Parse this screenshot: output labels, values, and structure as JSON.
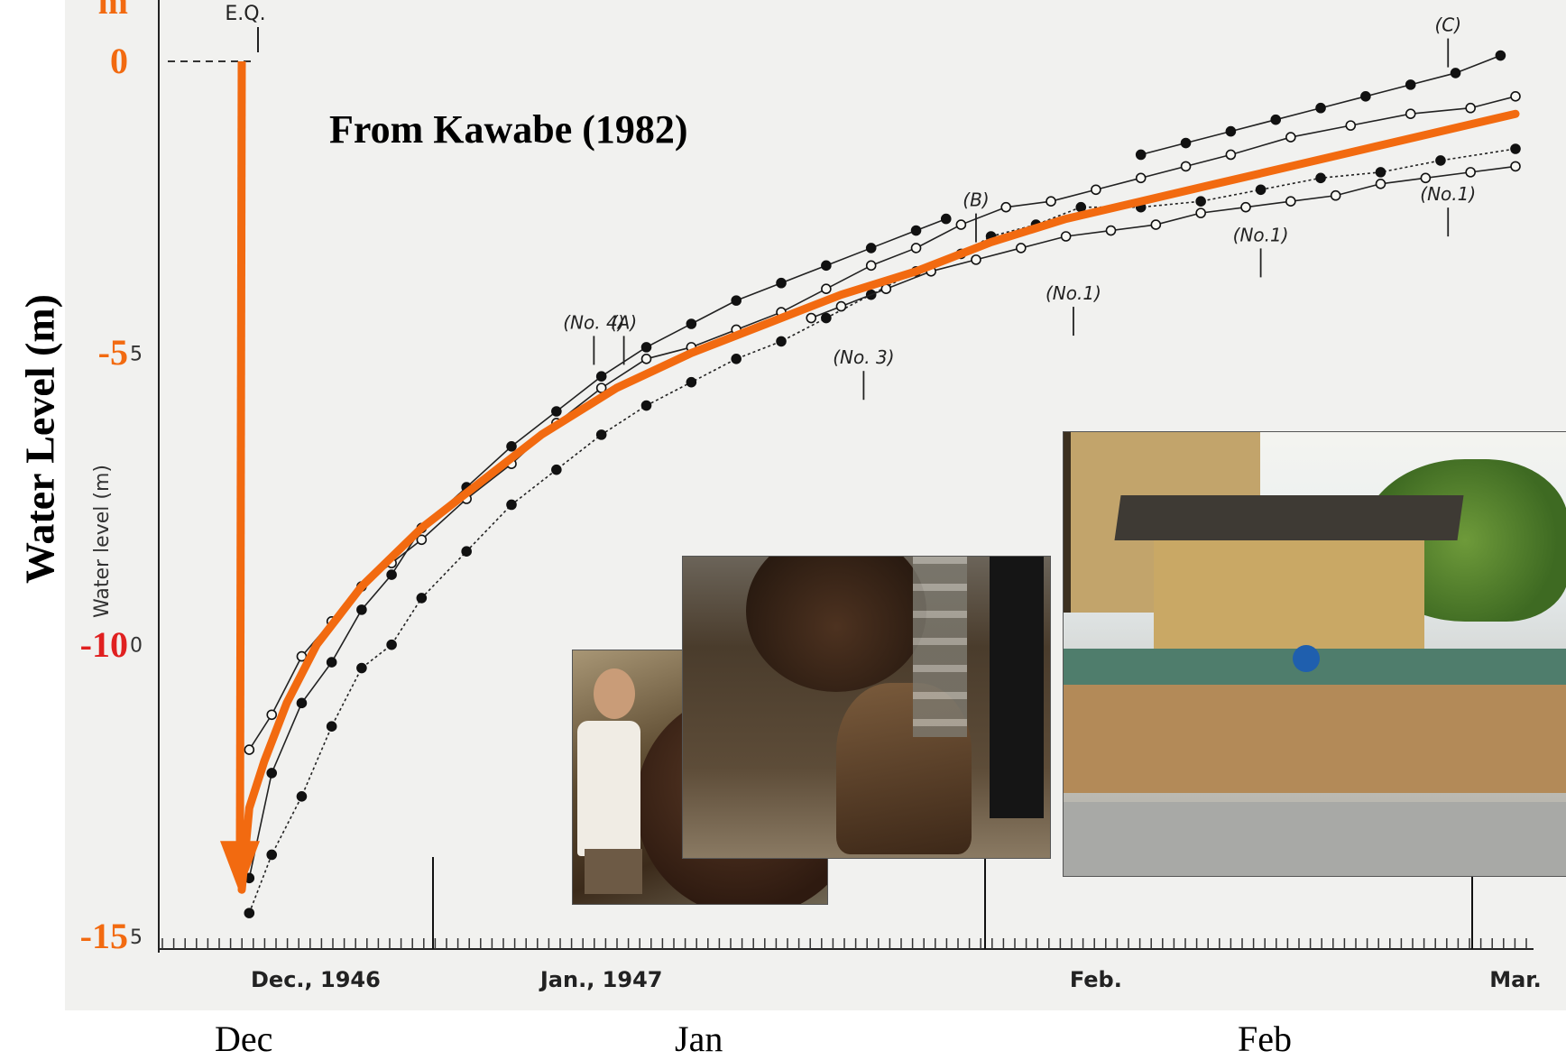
{
  "chart_data": {
    "type": "line",
    "ylabel": "Water Level (m)",
    "inner_ylabel": "Water level (m)",
    "yunit": "m",
    "ylim": [
      -15,
      0
    ],
    "yticks": [
      {
        "label": "0",
        "value": 0,
        "color": "#f26a10"
      },
      {
        "label": "-5",
        "value": -5,
        "color": "#f26a10"
      },
      {
        "label": "-10",
        "value": -10,
        "color": "#e02020"
      },
      {
        "label": "-15",
        "value": -15,
        "color": "#f26a10"
      }
    ],
    "inner_yticks": [
      {
        "label": "5",
        "value": -5
      },
      {
        "label": "0",
        "value": -10
      },
      {
        "label": "5",
        "value": -15
      }
    ],
    "xlabels_outer": [
      {
        "label": "Dec",
        "day": 0
      },
      {
        "label": "Jan",
        "day": 28
      },
      {
        "label": "Feb",
        "day": 60
      }
    ],
    "xlabels_inner": [
      {
        "label": "Dec., 1946",
        "day": 0
      },
      {
        "label": "Jan., 1947",
        "day": 24
      },
      {
        "label": "Feb.",
        "day": 57
      },
      {
        "label": "Mar.",
        "day": 85
      }
    ],
    "annotation": "From Kawabe (1982)",
    "eq_label": "E.Q.",
    "markers": [
      {
        "label": "(A)",
        "day": 25.5,
        "level": -4.8
      },
      {
        "label": "(B)",
        "day": 49,
        "level": -2.7
      },
      {
        "label": "(C)",
        "day": 80.5,
        "level": 0.3
      },
      {
        "label": "(No. 4)",
        "day": 23.5,
        "level": -4.8
      },
      {
        "label": "(No. 3)",
        "day": 41.5,
        "level": -5.4
      },
      {
        "label": "(No.1)",
        "day": 55.5,
        "level": -4.3
      },
      {
        "label": "(No.1)",
        "day": 68,
        "level": -3.3
      },
      {
        "label": "(No.1)",
        "day": 80.5,
        "level": -2.6
      }
    ],
    "series": [
      {
        "style": "orange-trend",
        "color": "#f26a10",
        "x": [
          0,
          0,
          0.5,
          1.5,
          3,
          5,
          8,
          12,
          16,
          20,
          25,
          30,
          35,
          40,
          45,
          50,
          55,
          60,
          65,
          70,
          75,
          80,
          85
        ],
        "y": [
          0,
          -14.2,
          -12.8,
          -12.0,
          -11.0,
          -10.0,
          -9.0,
          -8.0,
          -7.2,
          -6.4,
          -5.6,
          -5.0,
          -4.5,
          -4.0,
          -3.6,
          -3.1,
          -2.7,
          -2.4,
          -2.1,
          -1.8,
          -1.5,
          -1.2,
          -0.9
        ]
      },
      {
        "style": "solid-dots-upper",
        "x": [
          0.5,
          2,
          4,
          6,
          8,
          10,
          12,
          15,
          18,
          21,
          24,
          27,
          30,
          33,
          36,
          39,
          42,
          45,
          47
        ],
        "y": [
          -14.0,
          -12.2,
          -11.0,
          -10.3,
          -9.4,
          -8.8,
          -8.0,
          -7.3,
          -6.6,
          -6.0,
          -5.4,
          -4.9,
          -4.5,
          -4.1,
          -3.8,
          -3.5,
          -3.2,
          -2.9,
          -2.7
        ]
      },
      {
        "style": "open-circles",
        "x": [
          0.5,
          2,
          4,
          6,
          8,
          10,
          12,
          15,
          18,
          21,
          24,
          27,
          30,
          33,
          36,
          39,
          42,
          45,
          48,
          51,
          54,
          57,
          60,
          63,
          66,
          70,
          74,
          78,
          82,
          85
        ],
        "y": [
          -11.8,
          -11.2,
          -10.2,
          -9.6,
          -9.0,
          -8.6,
          -8.2,
          -7.5,
          -6.9,
          -6.2,
          -5.6,
          -5.1,
          -4.9,
          -4.6,
          -4.3,
          -3.9,
          -3.5,
          -3.2,
          -2.8,
          -2.5,
          -2.4,
          -2.2,
          -2.0,
          -1.8,
          -1.6,
          -1.3,
          -1.1,
          -0.9,
          -0.8,
          -0.6
        ]
      },
      {
        "style": "solid-dots-lower",
        "x": [
          0.5,
          2,
          4,
          6,
          8,
          10,
          12,
          15,
          18,
          21,
          24,
          27,
          30,
          33,
          36,
          39,
          42,
          45,
          48,
          50,
          53,
          56,
          60,
          64,
          68,
          72,
          76,
          80,
          85
        ],
        "y": [
          -14.6,
          -13.6,
          -12.6,
          -11.4,
          -10.4,
          -10.0,
          -9.2,
          -8.4,
          -7.6,
          -7.0,
          -6.4,
          -5.9,
          -5.5,
          -5.1,
          -4.8,
          -4.4,
          -4.0,
          -3.6,
          -3.3,
          -3.0,
          -2.8,
          -2.5,
          -2.5,
          -2.4,
          -2.2,
          -2.0,
          -1.9,
          -1.7,
          -1.5
        ]
      },
      {
        "style": "open-circles-well",
        "x": [
          38,
          40,
          43,
          46,
          49,
          52,
          55,
          58,
          61,
          64,
          67,
          70,
          73,
          76,
          79,
          82,
          85
        ],
        "y": [
          -4.4,
          -4.2,
          -3.9,
          -3.6,
          -3.4,
          -3.2,
          -3.0,
          -2.9,
          -2.8,
          -2.6,
          -2.5,
          -2.4,
          -2.3,
          -2.1,
          -2.0,
          -1.9,
          -1.8
        ]
      },
      {
        "style": "solid-dots-well-c",
        "x": [
          60,
          63,
          66,
          69,
          72,
          75,
          78,
          81,
          84
        ],
        "y": [
          -1.6,
          -1.4,
          -1.2,
          -1.0,
          -0.8,
          -0.6,
          -0.4,
          -0.2,
          0.1
        ]
      }
    ]
  },
  "photos": [
    {
      "name": "photo-man-with-lid",
      "subject": "man crouching beside dark wooden lid"
    },
    {
      "name": "photo-wooden-well",
      "subject": "wooden hot spring well cover"
    },
    {
      "name": "photo-dogo-onsen",
      "subject": "traditional Japanese bathhouse building"
    }
  ],
  "colors": {
    "accent": "#f26a10",
    "red_tick": "#e02020",
    "ink": "#222222"
  }
}
